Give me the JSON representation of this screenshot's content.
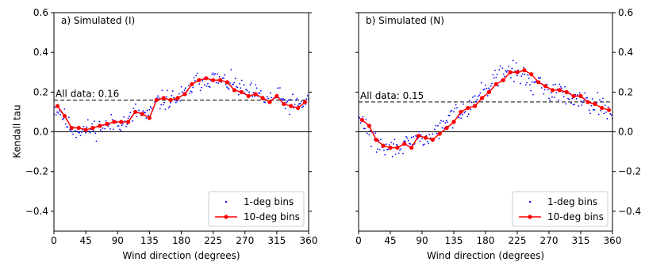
{
  "chart_data": [
    {
      "type": "scatter",
      "title": "a) Simulated (I)",
      "xlabel": "Wind direction (degrees)",
      "ylabel": "Kendall tau",
      "xlim": [
        0,
        360
      ],
      "ylim": [
        -0.5,
        0.6
      ],
      "xticks": [
        "0",
        "45",
        "90",
        "135",
        "180",
        "225",
        "270",
        "315",
        "360"
      ],
      "yticks": [
        "−0.4",
        "−0.2",
        "0.0",
        "0.2",
        "0.4",
        "0.6"
      ],
      "ytick_side": "left",
      "annotation": "All data: 0.16",
      "all_data_value": 0.16,
      "legend_position": "lower-right",
      "series": [
        {
          "name": "1-deg bins",
          "style": "points",
          "color": "#0000ff",
          "control_x": [
            0,
            10,
            20,
            30,
            45,
            60,
            75,
            90,
            105,
            115,
            125,
            135,
            145,
            160,
            175,
            190,
            200,
            210,
            225,
            240,
            255,
            270,
            285,
            295,
            305,
            315,
            325,
            335,
            345,
            360
          ],
          "control_y": [
            0.12,
            0.1,
            0.03,
            0.01,
            0.01,
            0.02,
            0.03,
            0.05,
            0.05,
            0.1,
            0.09,
            0.08,
            0.15,
            0.16,
            0.17,
            0.2,
            0.25,
            0.26,
            0.27,
            0.25,
            0.24,
            0.2,
            0.19,
            0.17,
            0.16,
            0.18,
            0.15,
            0.14,
            0.13,
            0.16
          ],
          "noise": 0.035,
          "seed": 11
        },
        {
          "name": "10-deg bins",
          "style": "line-markers",
          "color": "#ff0000",
          "x": [
            5,
            15,
            25,
            35,
            45,
            55,
            65,
            75,
            85,
            95,
            105,
            115,
            125,
            135,
            145,
            155,
            165,
            175,
            185,
            195,
            205,
            215,
            225,
            235,
            245,
            255,
            265,
            275,
            285,
            295,
            305,
            315,
            325,
            335,
            345,
            355
          ],
          "y": [
            0.13,
            0.08,
            0.02,
            0.02,
            0.01,
            0.02,
            0.03,
            0.04,
            0.05,
            0.05,
            0.05,
            0.1,
            0.09,
            0.07,
            0.16,
            0.17,
            0.16,
            0.17,
            0.19,
            0.24,
            0.26,
            0.27,
            0.26,
            0.26,
            0.25,
            0.21,
            0.2,
            0.18,
            0.19,
            0.17,
            0.15,
            0.18,
            0.14,
            0.13,
            0.12,
            0.15
          ]
        }
      ]
    },
    {
      "type": "scatter",
      "title": "b) Simulated (N)",
      "xlabel": "Wind direction (degrees)",
      "ylabel": "",
      "xlim": [
        0,
        360
      ],
      "ylim": [
        -0.5,
        0.6
      ],
      "xticks": [
        "0",
        "45",
        "90",
        "135",
        "180",
        "225",
        "270",
        "315",
        "360"
      ],
      "yticks": [
        "−0.4",
        "−0.2",
        "0.0",
        "0.2",
        "0.4",
        "0.6"
      ],
      "ytick_side": "right",
      "annotation": "All data: 0.15",
      "all_data_value": 0.15,
      "legend_position": "lower-right",
      "series": [
        {
          "name": "1-deg bins",
          "style": "points",
          "color": "#0000ff",
          "control_x": [
            0,
            10,
            20,
            30,
            40,
            50,
            60,
            70,
            80,
            90,
            100,
            110,
            120,
            135,
            150,
            165,
            180,
            195,
            210,
            225,
            240,
            255,
            270,
            285,
            300,
            315,
            330,
            345,
            360
          ],
          "control_y": [
            0.06,
            0.04,
            -0.04,
            -0.07,
            -0.09,
            -0.08,
            -0.06,
            -0.08,
            -0.04,
            -0.03,
            -0.04,
            0.0,
            0.03,
            0.09,
            0.12,
            0.16,
            0.22,
            0.27,
            0.31,
            0.3,
            0.26,
            0.23,
            0.21,
            0.2,
            0.18,
            0.17,
            0.15,
            0.13,
            0.09
          ],
          "noise": 0.035,
          "seed": 29
        },
        {
          "name": "10-deg bins",
          "style": "line-markers",
          "color": "#ff0000",
          "x": [
            5,
            15,
            25,
            35,
            45,
            55,
            65,
            75,
            85,
            95,
            105,
            115,
            125,
            135,
            145,
            155,
            165,
            175,
            185,
            195,
            205,
            215,
            225,
            235,
            245,
            255,
            265,
            275,
            285,
            295,
            305,
            315,
            325,
            335,
            345,
            355
          ],
          "y": [
            0.06,
            0.03,
            -0.04,
            -0.07,
            -0.08,
            -0.08,
            -0.06,
            -0.08,
            -0.02,
            -0.03,
            -0.04,
            -0.01,
            0.02,
            0.05,
            0.1,
            0.12,
            0.13,
            0.17,
            0.2,
            0.24,
            0.26,
            0.3,
            0.3,
            0.31,
            0.29,
            0.25,
            0.23,
            0.21,
            0.21,
            0.2,
            0.18,
            0.18,
            0.15,
            0.14,
            0.12,
            0.11
          ]
        }
      ]
    }
  ]
}
